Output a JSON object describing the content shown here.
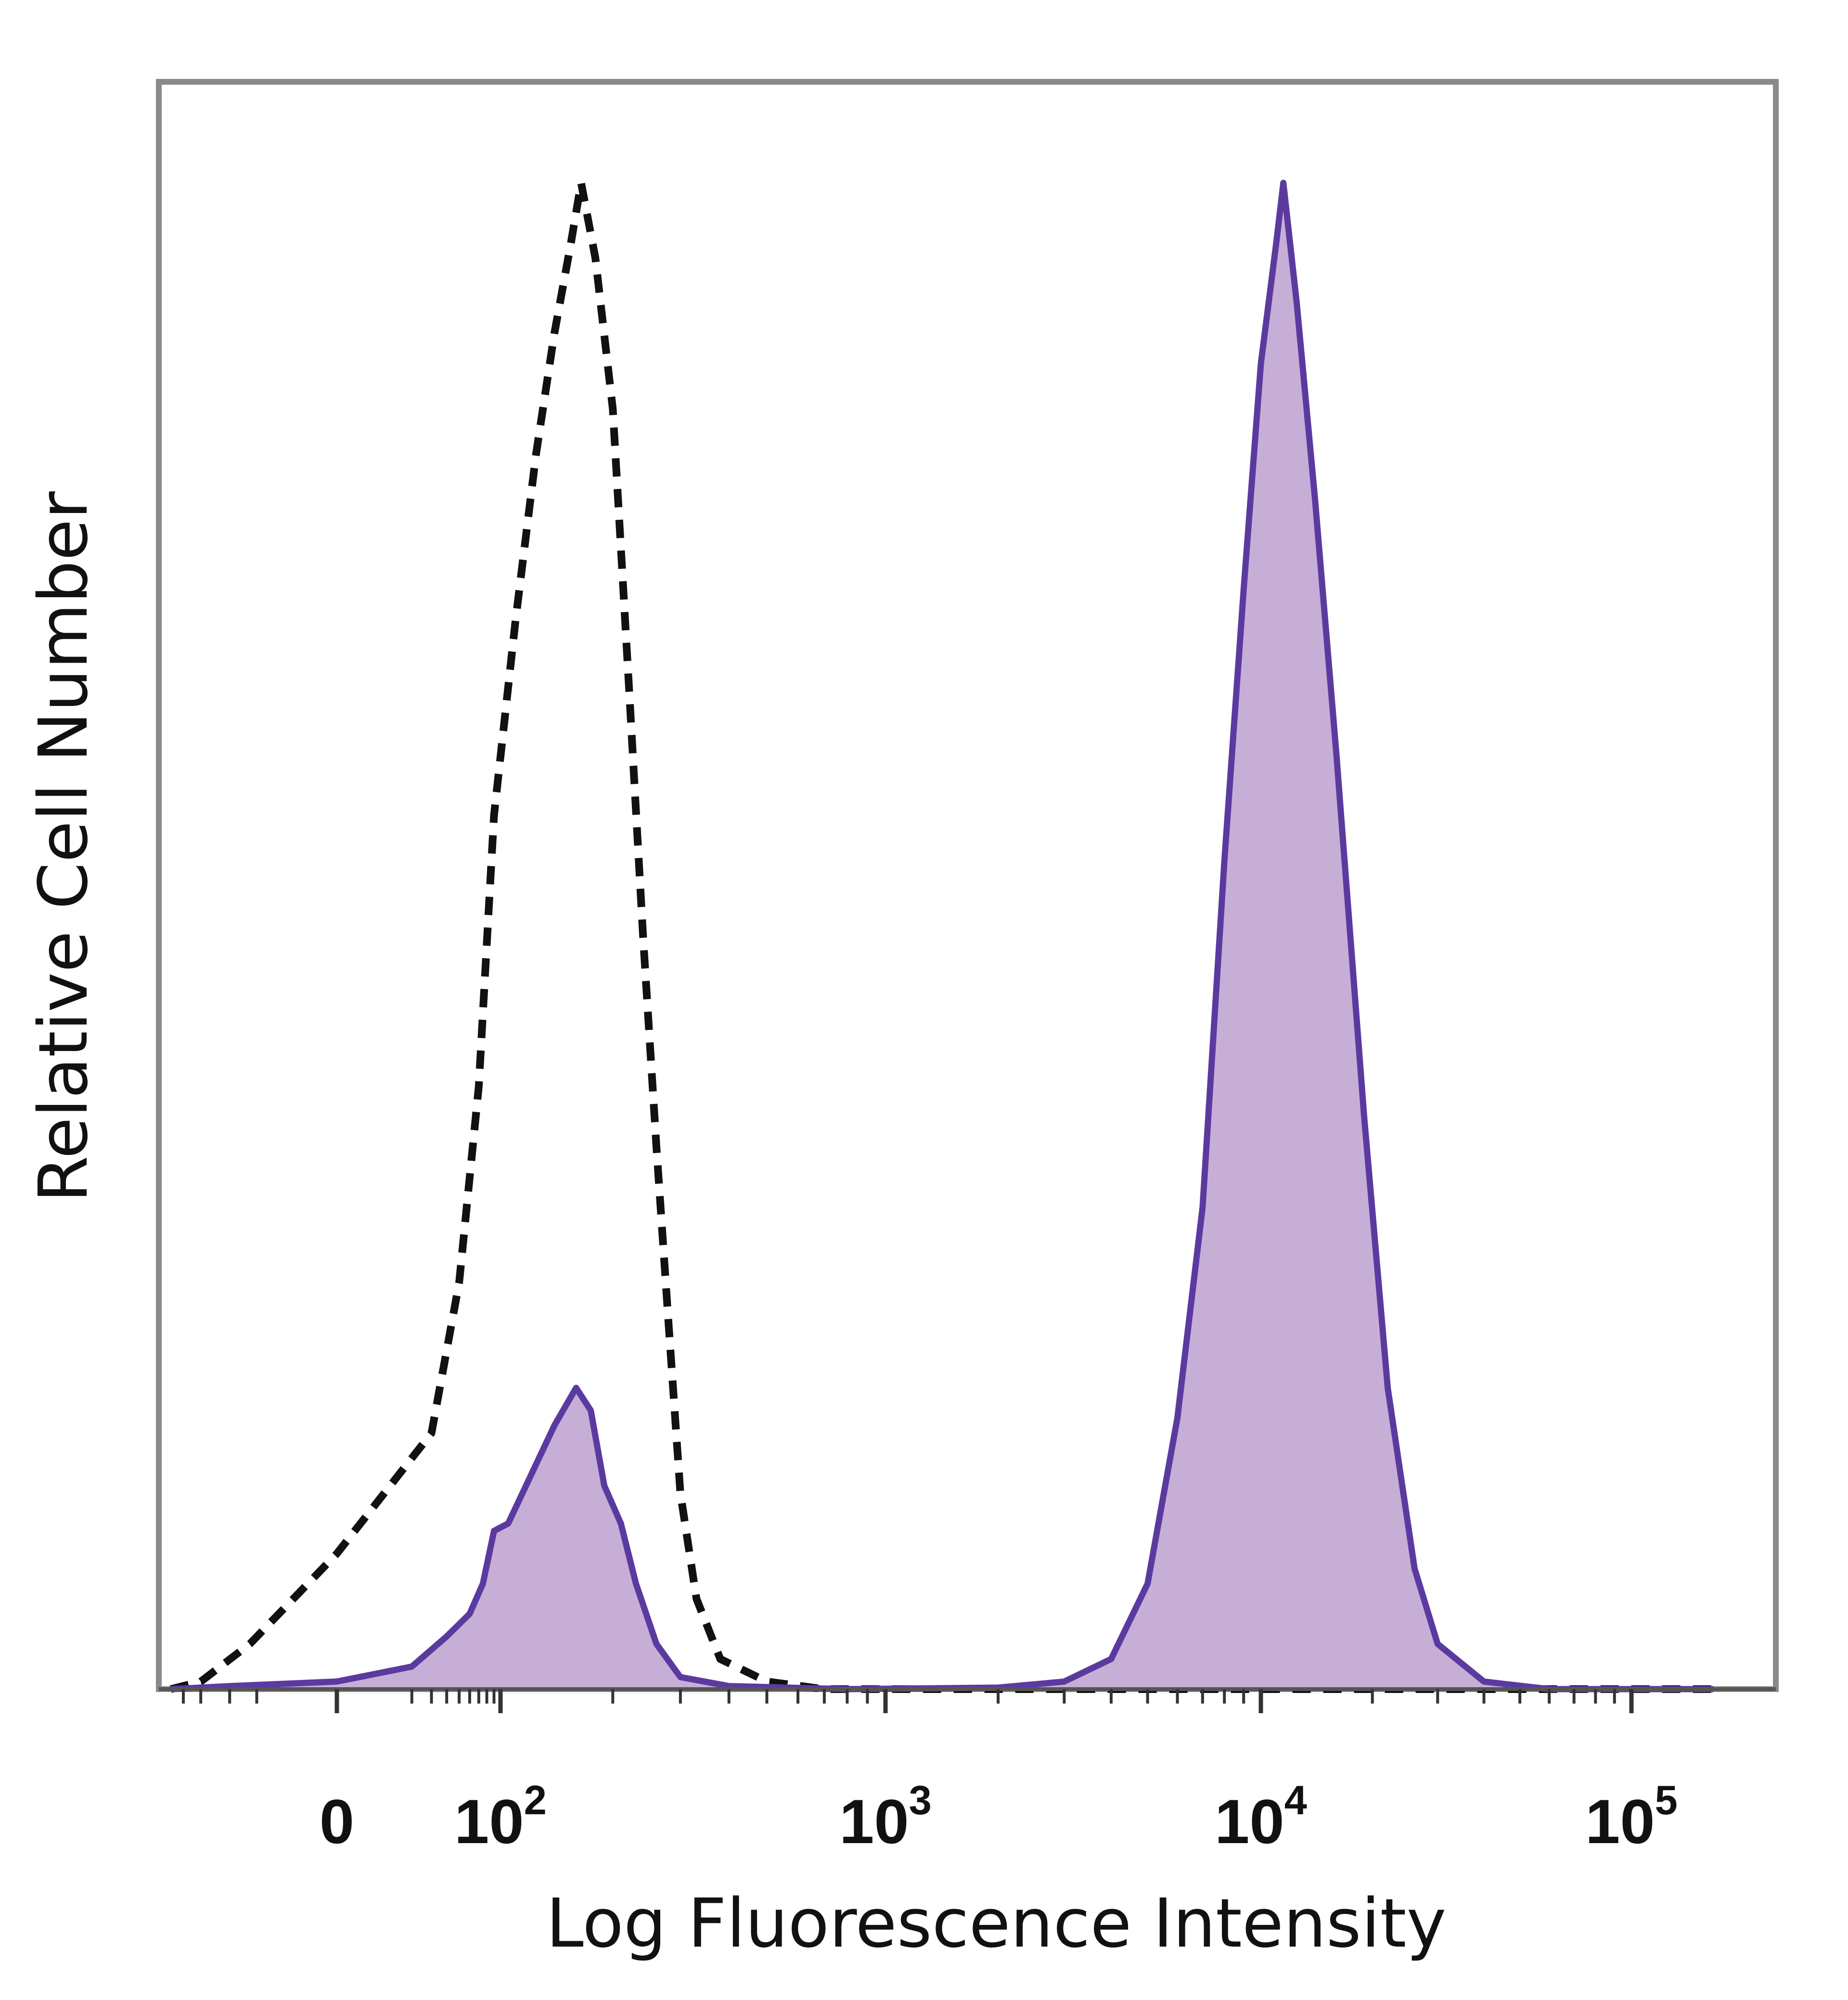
{
  "chart_data": {
    "type": "area",
    "xlabel": "Log Fluorescence Intensity",
    "ylabel": "Relative Cell Number",
    "xscale": "biexponential",
    "x_tick_labels": [
      {
        "value": 0,
        "label": "0",
        "base": "0",
        "exp": ""
      },
      {
        "value": 100,
        "label": "10^2",
        "base": "10",
        "exp": "2"
      },
      {
        "value": 1000,
        "label": "10^3",
        "base": "10",
        "exp": "3"
      },
      {
        "value": 10000,
        "label": "10^4",
        "base": "10",
        "exp": "4"
      },
      {
        "value": 100000,
        "label": "10^5",
        "base": "10",
        "exp": "5"
      }
    ],
    "ylim": [
      0,
      100
    ],
    "grid": false,
    "legend": "none",
    "series": [
      {
        "style": "dashed",
        "color": "#111111",
        "fill": "none",
        "points": [
          [
            -400,
            0
          ],
          [
            -200,
            0.5
          ],
          [
            -60,
            3
          ],
          [
            0,
            9
          ],
          [
            30,
            17
          ],
          [
            50,
            27
          ],
          [
            70,
            40
          ],
          [
            90,
            58
          ],
          [
            110,
            71
          ],
          [
            125,
            82
          ],
          [
            140,
            90
          ],
          [
            155,
            96
          ],
          [
            165,
            100
          ],
          [
            180,
            95
          ],
          [
            200,
            85
          ],
          [
            220,
            67
          ],
          [
            240,
            50
          ],
          [
            260,
            36
          ],
          [
            280,
            24
          ],
          [
            300,
            13
          ],
          [
            330,
            6
          ],
          [
            380,
            2
          ],
          [
            500,
            0.5
          ],
          [
            700,
            0
          ],
          [
            150000,
            0
          ]
        ]
      },
      {
        "style": "solid",
        "color": "#5b3aa0",
        "fill": "#c7aed6",
        "points": [
          [
            -400,
            0
          ],
          [
            -100,
            0.2
          ],
          [
            0,
            0.5
          ],
          [
            20,
            1.5
          ],
          [
            40,
            3.5
          ],
          [
            60,
            5
          ],
          [
            75,
            7
          ],
          [
            90,
            10.5
          ],
          [
            105,
            11
          ],
          [
            120,
            14
          ],
          [
            140,
            17.5
          ],
          [
            160,
            20
          ],
          [
            175,
            18.5
          ],
          [
            190,
            13.5
          ],
          [
            210,
            11
          ],
          [
            230,
            7
          ],
          [
            260,
            3
          ],
          [
            300,
            0.8
          ],
          [
            400,
            0.2
          ],
          [
            800,
            0
          ],
          [
            2000,
            0.1
          ],
          [
            3000,
            0.5
          ],
          [
            4000,
            2
          ],
          [
            5000,
            7
          ],
          [
            6000,
            18
          ],
          [
            7000,
            32
          ],
          [
            8000,
            55
          ],
          [
            9000,
            73
          ],
          [
            10000,
            88
          ],
          [
            11000,
            96
          ],
          [
            11500,
            100
          ],
          [
            12500,
            92
          ],
          [
            14000,
            79
          ],
          [
            16000,
            62
          ],
          [
            19000,
            38
          ],
          [
            22000,
            20
          ],
          [
            26000,
            8
          ],
          [
            30000,
            3
          ],
          [
            40000,
            0.5
          ],
          [
            60000,
            0
          ],
          [
            150000,
            0
          ]
        ]
      }
    ]
  }
}
